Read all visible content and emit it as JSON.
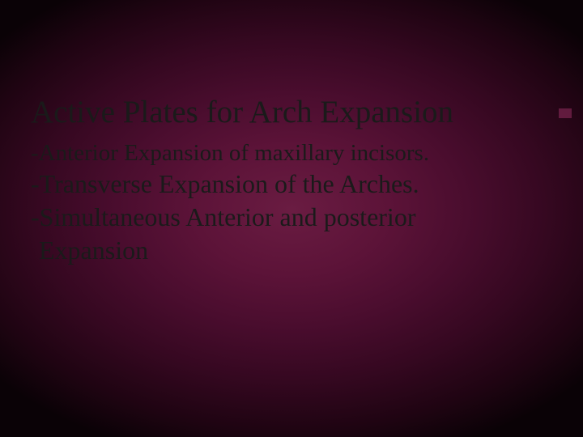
{
  "slide": {
    "background": {
      "type": "radial-gradient",
      "center_color": "#6a1c42",
      "mid_color": "#4a0d2e",
      "edge_color": "#0a0206"
    },
    "text_color": "#1a1a1a",
    "font_family": "Times New Roman",
    "title": {
      "text": "Active Plates for Arch Expansion",
      "fontsize": 39
    },
    "body": [
      {
        "text": "-Anterior Expansion of maxillary incisors.",
        "fontsize": 29,
        "indent": false
      },
      {
        "text": "-Transverse Expansion of the Arches.",
        "fontsize": 32,
        "indent": false
      },
      {
        "text": "-Simultaneous Anterior and posterior",
        "fontsize": 32,
        "indent": false
      },
      {
        "text": "Expansion",
        "fontsize": 32,
        "indent": true
      }
    ],
    "accent_color": "#8b2a5a"
  }
}
